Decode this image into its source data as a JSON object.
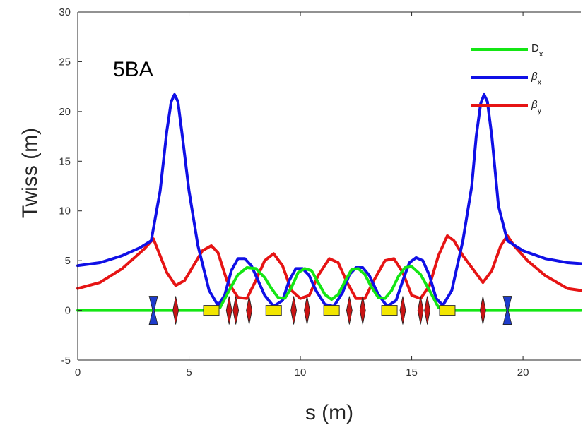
{
  "chart_data": {
    "type": "line",
    "title": "",
    "annotation": "5BA",
    "xlabel": "s (m)",
    "ylabel": "Twiss (m)",
    "xlim": [
      0,
      22.6
    ],
    "ylim": [
      -5,
      30
    ],
    "xticks": [
      0,
      5,
      10,
      15,
      20
    ],
    "yticks": [
      -5,
      0,
      5,
      10,
      15,
      20,
      25,
      30
    ],
    "grid": false,
    "legend_position": "top-right",
    "series": [
      {
        "name": "βx",
        "legend_main": "β",
        "legend_sub": "x",
        "color": "#1010e6",
        "x": [
          0,
          1,
          2,
          2.8,
          3.3,
          3.7,
          4.0,
          4.2,
          4.35,
          4.5,
          4.7,
          5.0,
          5.4,
          5.9,
          6.3,
          6.6,
          6.9,
          7.2,
          7.5,
          7.8,
          8.1,
          8.4,
          8.8,
          9.2,
          9.5,
          9.8,
          10.1,
          10.4,
          10.7,
          11.1,
          11.5,
          11.9,
          12.2,
          12.5,
          12.8,
          13.1,
          13.5,
          13.9,
          14.3,
          14.6,
          14.9,
          15.2,
          15.5,
          15.8,
          16.1,
          16.4,
          16.8,
          17.3,
          17.7,
          17.9,
          18.1,
          18.25,
          18.4,
          18.6,
          18.9,
          19.3,
          20,
          21,
          22,
          22.6
        ],
        "y": [
          4.5,
          4.8,
          5.5,
          6.3,
          7.0,
          12.0,
          18.0,
          21.0,
          21.7,
          21.0,
          17.5,
          12.0,
          6.5,
          2.0,
          0.5,
          1.5,
          4.0,
          5.2,
          5.2,
          4.5,
          3.0,
          1.5,
          0.4,
          1.0,
          3.0,
          4.2,
          4.2,
          3.5,
          2.0,
          0.6,
          0.4,
          1.8,
          3.6,
          4.3,
          4.3,
          3.5,
          1.6,
          0.4,
          1.0,
          3.0,
          4.8,
          5.3,
          5.0,
          3.5,
          1.2,
          0.5,
          2.0,
          7.0,
          12.5,
          17.5,
          20.8,
          21.7,
          21.0,
          17.5,
          10.5,
          7.0,
          6.0,
          5.2,
          4.8,
          4.7
        ]
      },
      {
        "name": "βy",
        "legend_main": "β",
        "legend_sub": "y",
        "color": "#e61414",
        "x": [
          0,
          1,
          2,
          3.0,
          3.4,
          3.7,
          4.0,
          4.4,
          4.8,
          5.2,
          5.6,
          6.0,
          6.3,
          6.7,
          7.2,
          7.6,
          8.0,
          8.4,
          8.8,
          9.2,
          9.6,
          10.0,
          10.4,
          10.8,
          11.3,
          11.7,
          12.1,
          12.5,
          12.9,
          13.3,
          13.8,
          14.2,
          14.6,
          15.0,
          15.4,
          15.8,
          16.2,
          16.6,
          16.9,
          17.3,
          17.8,
          18.2,
          18.6,
          19.0,
          19.3,
          19.6,
          20.2,
          21,
          22,
          22.6
        ],
        "y": [
          2.2,
          2.8,
          4.2,
          6.2,
          7.2,
          5.5,
          3.8,
          2.5,
          3.0,
          4.5,
          6.0,
          6.5,
          5.8,
          3.0,
          1.3,
          1.2,
          3.0,
          5.0,
          5.7,
          4.5,
          2.0,
          1.2,
          1.5,
          3.5,
          5.2,
          4.8,
          2.8,
          1.2,
          1.2,
          3.0,
          5.0,
          5.2,
          3.8,
          1.5,
          1.2,
          2.5,
          5.5,
          7.5,
          7.0,
          5.5,
          4.0,
          2.8,
          4.0,
          6.5,
          7.5,
          6.5,
          5.0,
          3.5,
          2.2,
          2.0
        ]
      },
      {
        "name": "Dx",
        "legend_main": "D",
        "legend_sub": "x",
        "color": "#14e614",
        "x": [
          0,
          5,
          6.0,
          6.4,
          6.8,
          7.2,
          7.6,
          8.0,
          8.4,
          8.7,
          9.0,
          9.3,
          9.6,
          9.9,
          10.2,
          10.5,
          10.8,
          11.1,
          11.4,
          11.7,
          12.0,
          12.3,
          12.6,
          12.9,
          13.2,
          13.5,
          13.8,
          14.1,
          14.4,
          14.7,
          15.0,
          15.4,
          15.8,
          16.2,
          16.6,
          17,
          22.6
        ],
        "y": [
          0,
          0,
          0,
          0.3,
          2.0,
          3.6,
          4.3,
          4.2,
          3.3,
          2.2,
          1.3,
          1.2,
          2.3,
          3.8,
          4.2,
          4.0,
          2.8,
          1.6,
          1.1,
          1.6,
          2.9,
          4.1,
          4.2,
          3.6,
          2.3,
          1.3,
          1.2,
          2.0,
          3.4,
          4.3,
          4.4,
          3.6,
          2.0,
          0.3,
          0,
          0,
          0
        ]
      }
    ],
    "lattice": {
      "dipoles": [
        6.0,
        8.8,
        11.4,
        14.0,
        16.6
      ],
      "dipole_color": "#f2e600",
      "focusing_quads": [
        4.4,
        6.8,
        7.1,
        7.7,
        9.7,
        10.3,
        12.2,
        12.8,
        14.6,
        15.4,
        15.7,
        18.2
      ],
      "quad_color": "#c81414",
      "defocusing_quads": [
        3.4,
        19.3
      ],
      "defocus_color": "#1e3ccc"
    }
  }
}
